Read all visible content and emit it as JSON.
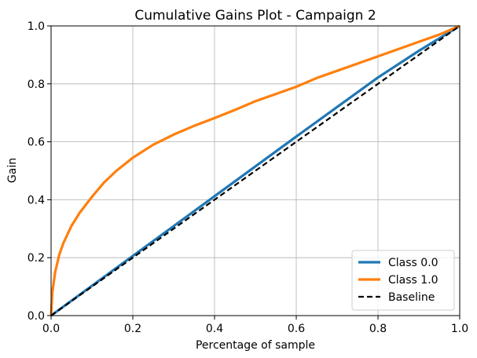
{
  "chart_data": {
    "type": "line",
    "title": "Cumulative Gains Plot - Campaign 2",
    "xlabel": "Percentage of sample",
    "ylabel": "Gain",
    "xlim": [
      0.0,
      1.0
    ],
    "ylim": [
      0.0,
      1.0
    ],
    "xticks": [
      "0.0",
      "0.2",
      "0.4",
      "0.6",
      "0.8",
      "1.0"
    ],
    "yticks": [
      "0.0",
      "0.2",
      "0.4",
      "0.6",
      "0.8",
      "1.0"
    ],
    "grid": true,
    "legend_position": "lower-right",
    "series": [
      {
        "name": "Class 0.0",
        "color": "#1f77b4",
        "style": "solid",
        "points": [
          [
            0.0,
            0.0
          ],
          [
            0.1,
            0.103
          ],
          [
            0.2,
            0.206
          ],
          [
            0.3,
            0.309
          ],
          [
            0.4,
            0.412
          ],
          [
            0.5,
            0.515
          ],
          [
            0.6,
            0.618
          ],
          [
            0.7,
            0.72
          ],
          [
            0.8,
            0.822
          ],
          [
            0.9,
            0.914
          ],
          [
            1.0,
            1.0
          ]
        ]
      },
      {
        "name": "Class 1.0",
        "color": "#ff7f0e",
        "style": "solid",
        "points": [
          [
            0.0,
            0.0
          ],
          [
            0.003,
            0.08
          ],
          [
            0.01,
            0.15
          ],
          [
            0.02,
            0.21
          ],
          [
            0.03,
            0.25
          ],
          [
            0.05,
            0.31
          ],
          [
            0.07,
            0.355
          ],
          [
            0.1,
            0.41
          ],
          [
            0.13,
            0.46
          ],
          [
            0.16,
            0.5
          ],
          [
            0.2,
            0.545
          ],
          [
            0.25,
            0.59
          ],
          [
            0.3,
            0.625
          ],
          [
            0.35,
            0.655
          ],
          [
            0.4,
            0.682
          ],
          [
            0.45,
            0.71
          ],
          [
            0.5,
            0.74
          ],
          [
            0.55,
            0.765
          ],
          [
            0.6,
            0.79
          ],
          [
            0.65,
            0.82
          ],
          [
            0.7,
            0.845
          ],
          [
            0.75,
            0.87
          ],
          [
            0.8,
            0.895
          ],
          [
            0.85,
            0.92
          ],
          [
            0.9,
            0.945
          ],
          [
            0.95,
            0.97
          ],
          [
            1.0,
            1.0
          ]
        ]
      },
      {
        "name": "Baseline",
        "color": "#000000",
        "style": "dashed",
        "points": [
          [
            0.0,
            0.0
          ],
          [
            1.0,
            1.0
          ]
        ]
      }
    ]
  }
}
